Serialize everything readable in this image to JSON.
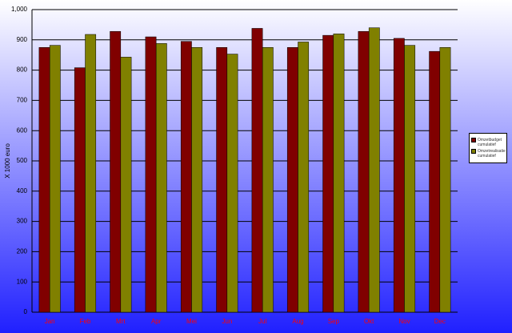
{
  "chart_data": {
    "type": "bar",
    "y_label": "X 1000 euro",
    "categories": [
      "Jan",
      "Feb",
      "Mrt",
      "Apr",
      "Mei",
      "Jun",
      "Jul",
      "Aug",
      "Sep",
      "Okt",
      "Nov",
      "Dec"
    ],
    "series": [
      {
        "name": "Omzetbudget cumulatief",
        "color": "#800000",
        "values": [
          875,
          808,
          928,
          910,
          895,
          875,
          938,
          875,
          915,
          928,
          905,
          862
        ]
      },
      {
        "name": "Omzetrealisatie cumulatief",
        "color": "#808000",
        "values": [
          882,
          918,
          843,
          888,
          875,
          853,
          875,
          893,
          920,
          940,
          882,
          875
        ]
      }
    ],
    "ylim": [
      0,
      1000
    ],
    "yticks": [
      0,
      100,
      200,
      300,
      400,
      500,
      600,
      700,
      800,
      900,
      {
        "value": 1000,
        "label": "1,000"
      }
    ],
    "grid": true,
    "legend": "right"
  }
}
